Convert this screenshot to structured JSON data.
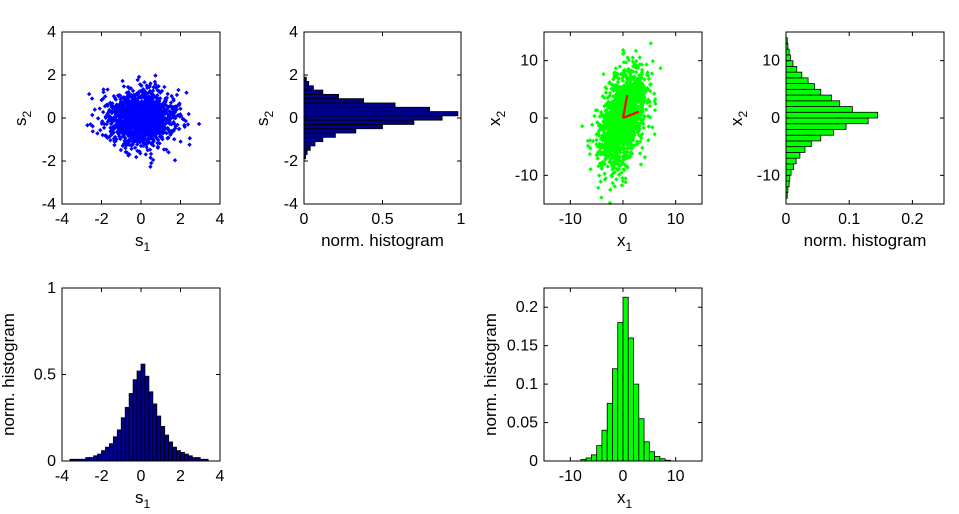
{
  "chart_data": [
    {
      "id": "p1",
      "type": "scatter",
      "color": "#0000ff",
      "xlabel_base": "s",
      "xlabel_sub": "1",
      "ylabel_base": "s",
      "ylabel_sub": "2",
      "xlim": [
        -4,
        4
      ],
      "ylim": [
        -4,
        4
      ],
      "xticks": [
        -4,
        -2,
        0,
        2,
        4
      ],
      "yticks": [
        -4,
        -2,
        0,
        2,
        4
      ],
      "distribution": {
        "center": [
          0,
          0
        ],
        "sd": [
          0.85,
          0.65
        ],
        "n": 1500
      }
    },
    {
      "id": "p2",
      "type": "bar",
      "orientation": "horizontal",
      "color": "#00008b",
      "xlabel": "norm. histogram",
      "ylabel_base": "s",
      "ylabel_sub": "2",
      "xlim": [
        0,
        1
      ],
      "ylim": [
        -4,
        4
      ],
      "xticks": [
        0,
        0.5,
        1
      ],
      "xtick_labels": [
        "0",
        "0.5",
        "1"
      ],
      "yticks": [
        -4,
        -2,
        0,
        2,
        4
      ],
      "bins": [
        [
          -1.8,
          0.01
        ],
        [
          -1.6,
          0.02
        ],
        [
          -1.4,
          0.04
        ],
        [
          -1.2,
          0.07
        ],
        [
          -1.0,
          0.12
        ],
        [
          -0.8,
          0.2
        ],
        [
          -0.6,
          0.33
        ],
        [
          -0.4,
          0.5
        ],
        [
          -0.2,
          0.7
        ],
        [
          0.0,
          0.88
        ],
        [
          0.2,
          0.98
        ],
        [
          0.4,
          0.8
        ],
        [
          0.6,
          0.58
        ],
        [
          0.8,
          0.38
        ],
        [
          1.0,
          0.22
        ],
        [
          1.2,
          0.12
        ],
        [
          1.4,
          0.06
        ],
        [
          1.6,
          0.03
        ],
        [
          1.8,
          0.015
        ]
      ]
    },
    {
      "id": "p3",
      "type": "scatter",
      "color": "#00ff00",
      "xlabel_base": "x",
      "xlabel_sub": "1",
      "ylabel_base": "x",
      "ylabel_sub": "2",
      "xlim": [
        -15,
        15
      ],
      "ylim": [
        -15,
        15
      ],
      "xticks": [
        -10,
        0,
        10
      ],
      "yticks": [
        -10,
        0,
        10
      ],
      "distribution": {
        "center": [
          0,
          0
        ],
        "sd": [
          2.2,
          4.3
        ],
        "correlation": 0.45,
        "n": 1500
      },
      "vectors": {
        "color": "#ff0000",
        "lines": [
          [
            [
              0,
              0
            ],
            [
              0.8,
              4.0
            ]
          ],
          [
            [
              0,
              0
            ],
            [
              3.0,
              1.1
            ]
          ]
        ]
      }
    },
    {
      "id": "p4",
      "type": "bar",
      "orientation": "horizontal",
      "color": "#00ff00",
      "xlabel": "norm. histogram",
      "ylabel_base": "x",
      "ylabel_sub": "2",
      "xlim": [
        0,
        0.25
      ],
      "ylim": [
        -15,
        15
      ],
      "xticks": [
        0,
        0.1,
        0.2
      ],
      "xtick_labels": [
        "0",
        "0.1",
        "0.2"
      ],
      "yticks": [
        -10,
        0,
        10
      ],
      "bins": [
        [
          -13.5,
          0.002
        ],
        [
          -12.5,
          0.003
        ],
        [
          -11.5,
          0.005
        ],
        [
          -10.5,
          0.006
        ],
        [
          -9.5,
          0.008
        ],
        [
          -8.5,
          0.012
        ],
        [
          -7.5,
          0.016
        ],
        [
          -6.5,
          0.022
        ],
        [
          -5.5,
          0.03
        ],
        [
          -4.5,
          0.04
        ],
        [
          -3.5,
          0.055
        ],
        [
          -2.5,
          0.075
        ],
        [
          -1.5,
          0.095
        ],
        [
          -0.5,
          0.13
        ],
        [
          0.5,
          0.145
        ],
        [
          1.5,
          0.105
        ],
        [
          2.5,
          0.085
        ],
        [
          3.5,
          0.072
        ],
        [
          4.5,
          0.055
        ],
        [
          5.5,
          0.045
        ],
        [
          6.5,
          0.035
        ],
        [
          7.5,
          0.025
        ],
        [
          8.5,
          0.017
        ],
        [
          9.5,
          0.011
        ],
        [
          10.5,
          0.007
        ],
        [
          11.5,
          0.005
        ],
        [
          12.5,
          0.003
        ],
        [
          13.5,
          0.002
        ]
      ]
    },
    {
      "id": "p5",
      "type": "bar",
      "orientation": "vertical",
      "color": "#00008b",
      "xlabel_base": "s",
      "xlabel_sub": "1",
      "ylabel": "norm. histogram",
      "xlim": [
        -4,
        4
      ],
      "ylim": [
        0,
        1
      ],
      "xticks": [
        -4,
        -2,
        0,
        2,
        4
      ],
      "yticks": [
        0,
        0.5,
        1
      ],
      "ytick_labels": [
        "0",
        "0.5",
        "1"
      ],
      "bins": [
        [
          -3.5,
          0.01
        ],
        [
          -3.3,
          0.01
        ],
        [
          -3.1,
          0.01
        ],
        [
          -2.9,
          0.01
        ],
        [
          -2.7,
          0.02
        ],
        [
          -2.5,
          0.02
        ],
        [
          -2.3,
          0.03
        ],
        [
          -2.1,
          0.04
        ],
        [
          -1.9,
          0.06
        ],
        [
          -1.7,
          0.08
        ],
        [
          -1.5,
          0.1
        ],
        [
          -1.3,
          0.14
        ],
        [
          -1.1,
          0.18
        ],
        [
          -0.9,
          0.25
        ],
        [
          -0.7,
          0.31
        ],
        [
          -0.5,
          0.39
        ],
        [
          -0.3,
          0.47
        ],
        [
          -0.1,
          0.52
        ],
        [
          0.1,
          0.56
        ],
        [
          0.3,
          0.49
        ],
        [
          0.5,
          0.4
        ],
        [
          0.7,
          0.33
        ],
        [
          0.9,
          0.26
        ],
        [
          1.1,
          0.2
        ],
        [
          1.3,
          0.15
        ],
        [
          1.5,
          0.11
        ],
        [
          1.7,
          0.08
        ],
        [
          1.9,
          0.06
        ],
        [
          2.1,
          0.05
        ],
        [
          2.3,
          0.04
        ],
        [
          2.5,
          0.03
        ],
        [
          2.7,
          0.02
        ],
        [
          2.9,
          0.02
        ],
        [
          3.1,
          0.01
        ],
        [
          3.3,
          0.01
        ]
      ]
    },
    {
      "id": "p6",
      "type": "bar",
      "orientation": "vertical",
      "color": "#00ff00",
      "xlabel_base": "x",
      "xlabel_sub": "1",
      "ylabel": "norm. histogram",
      "xlim": [
        -15,
        15
      ],
      "ylim": [
        0,
        0.225
      ],
      "xticks": [
        -10,
        0,
        10
      ],
      "yticks": [
        0,
        0.05,
        0.1,
        0.15,
        0.2
      ],
      "ytick_labels": [
        "0",
        "0.05",
        "0.1",
        "0.15",
        "0.2"
      ],
      "bins": [
        [
          -7.5,
          0.002
        ],
        [
          -6.5,
          0.004
        ],
        [
          -5.5,
          0.008
        ],
        [
          -4.5,
          0.02
        ],
        [
          -3.5,
          0.04
        ],
        [
          -2.5,
          0.075
        ],
        [
          -1.5,
          0.12
        ],
        [
          -0.5,
          0.18
        ],
        [
          0.5,
          0.213
        ],
        [
          1.5,
          0.16
        ],
        [
          2.5,
          0.1
        ],
        [
          3.5,
          0.055
        ],
        [
          4.5,
          0.025
        ],
        [
          5.5,
          0.012
        ],
        [
          6.5,
          0.006
        ],
        [
          7.5,
          0.003
        ],
        [
          8.5,
          0.001
        ]
      ]
    }
  ]
}
